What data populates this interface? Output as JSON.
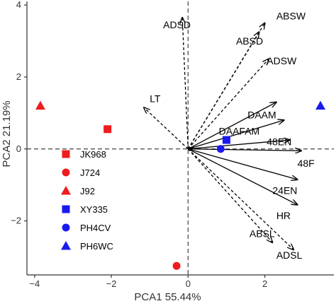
{
  "chart_data": {
    "type": "scatter",
    "subtype": "pca-biplot",
    "xlabel": "PCA1 55.44%",
    "ylabel": "PCA2 21.19%",
    "xlim": [
      -4.2,
      3.8
    ],
    "ylim": [
      -3.5,
      4.1
    ],
    "x_ticks": [
      -4,
      -2,
      0,
      2
    ],
    "y_ticks": [
      -2,
      0,
      2,
      4
    ],
    "x_tick_labels": [
      "−4",
      "−2",
      "0",
      "2"
    ],
    "y_tick_labels": [
      "−2",
      "0",
      "2",
      "4"
    ],
    "grid": false,
    "reference_lines": {
      "x": 0,
      "y": 0,
      "style": "dashed"
    },
    "colors": {
      "red": "#ee1c1c",
      "blue": "#1a1aee",
      "axis": "#333333"
    },
    "points": [
      {
        "name": "JK968",
        "shape": "square",
        "color": "#ee1c1c",
        "x": -2.1,
        "y": 0.55
      },
      {
        "name": "J724",
        "shape": "circle",
        "color": "#ee1c1c",
        "x": -0.3,
        "y": -3.25
      },
      {
        "name": "J92",
        "shape": "triangle",
        "color": "#ee1c1c",
        "x": -3.85,
        "y": 1.2
      },
      {
        "name": "XY335",
        "shape": "square",
        "color": "#1a1aee",
        "x": 1.0,
        "y": 0.25
      },
      {
        "name": "PH4CV",
        "shape": "circle",
        "color": "#1a1aee",
        "x": 0.85,
        "y": 0.0
      },
      {
        "name": "PH6WC",
        "shape": "triangle",
        "color": "#1a1aee",
        "x": 3.45,
        "y": 1.2
      }
    ],
    "vectors": [
      {
        "name": "ADSD",
        "x": -0.15,
        "y": 3.65,
        "style": "dashed",
        "label_x": -0.65,
        "label_y": 3.45
      },
      {
        "name": "ABSW",
        "x": 2.0,
        "y": 3.5,
        "style": "dashed",
        "label_x": 2.3,
        "label_y": 3.7
      },
      {
        "name": "ABSD",
        "x": 1.85,
        "y": 3.25,
        "style": "dashed",
        "label_x": 1.25,
        "label_y": 3.0
      },
      {
        "name": "ADSW",
        "x": 2.1,
        "y": 2.5,
        "style": "dashed",
        "label_x": 2.05,
        "label_y": 2.45
      },
      {
        "name": "LT",
        "x": -1.15,
        "y": 1.15,
        "style": "dashed",
        "label_x": -1.0,
        "label_y": 1.4
      },
      {
        "name": "DAAM",
        "x": 2.3,
        "y": 1.3,
        "style": "solid",
        "label_x": 1.55,
        "label_y": 0.95
      },
      {
        "name": "DAAFAM",
        "x": 2.5,
        "y": 0.8,
        "style": "solid",
        "label_x": 0.8,
        "label_y": 0.5
      },
      {
        "name": "48EN",
        "x": 2.65,
        "y": 0.25,
        "style": "solid",
        "label_x": 2.05,
        "label_y": 0.2
      },
      {
        "name": "48F",
        "x": 2.95,
        "y": -0.05,
        "style": "solid",
        "label_x": 2.85,
        "label_y": -0.4
      },
      {
        "name": "24EN",
        "x": 2.85,
        "y": -0.85,
        "style": "solid",
        "label_x": 2.2,
        "label_y": -1.15
      },
      {
        "name": "HR",
        "x": 2.85,
        "y": -1.55,
        "style": "solid",
        "label_x": 2.3,
        "label_y": -1.85
      },
      {
        "name": "ABSL",
        "x": 2.2,
        "y": -2.6,
        "style": "dashed",
        "label_x": 1.6,
        "label_y": -2.35
      },
      {
        "name": "ADSL",
        "x": 2.75,
        "y": -2.8,
        "style": "dashed",
        "label_x": 2.3,
        "label_y": -2.95
      }
    ],
    "legend": {
      "placement": "bottom-left",
      "entries": [
        {
          "label": "JK968",
          "shape": "square",
          "color": "#ee1c1c"
        },
        {
          "label": "J724",
          "shape": "circle",
          "color": "#ee1c1c"
        },
        {
          "label": "J92",
          "shape": "triangle",
          "color": "#ee1c1c"
        },
        {
          "label": "XY335",
          "shape": "square",
          "color": "#1a1aee"
        },
        {
          "label": "PH4CV",
          "shape": "circle",
          "color": "#1a1aee"
        },
        {
          "label": "PH6WC",
          "shape": "triangle",
          "color": "#1a1aee"
        }
      ]
    }
  }
}
